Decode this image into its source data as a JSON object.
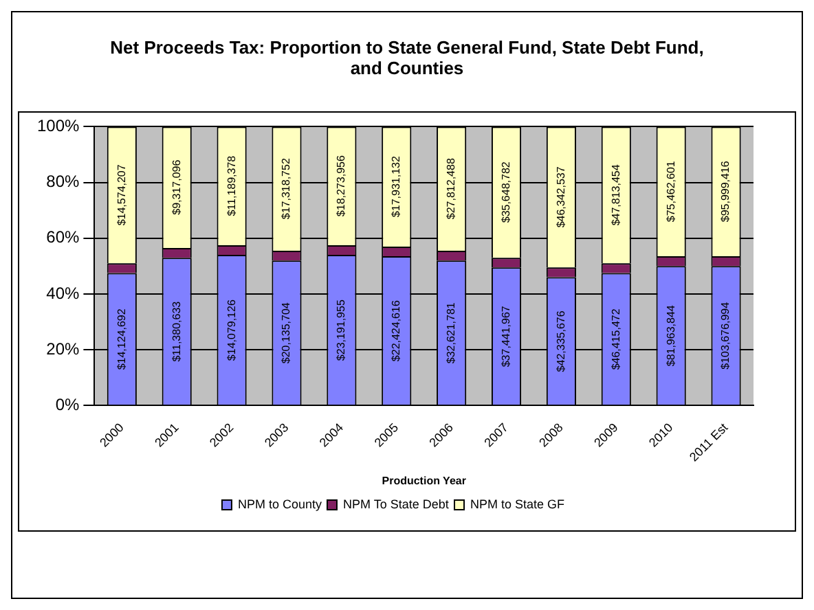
{
  "chart_data": {
    "type": "bar",
    "title": "Net Proceeds Tax: Proportion to State General Fund, State Debt Fund, and Counties",
    "xlabel": "Production Year",
    "categories": [
      "2000",
      "2001",
      "2002",
      "2003",
      "2004",
      "2005",
      "2006",
      "2007",
      "2008",
      "2009",
      "2010",
      "2011 Est"
    ],
    "stacked": true,
    "ylim": [
      0,
      100
    ],
    "yticks": [
      {
        "value": 0,
        "label": "0%"
      },
      {
        "value": 20,
        "label": "20%"
      },
      {
        "value": 40,
        "label": "40%"
      },
      {
        "value": 60,
        "label": "60%"
      },
      {
        "value": 80,
        "label": "80%"
      },
      {
        "value": 100,
        "label": "100%"
      }
    ],
    "grid": "y",
    "legend": "bottom",
    "series": [
      {
        "name": "NPM to County",
        "color": "#8080ff",
        "values": [
          47.5,
          53,
          54,
          52,
          54,
          53.5,
          52,
          49.5,
          46,
          47.5,
          50,
          50
        ]
      },
      {
        "name": "NPM To State Debt",
        "color": "#802060",
        "values": [
          3.5,
          3.5,
          3.5,
          3.5,
          3.5,
          3.5,
          3.5,
          3.5,
          3.5,
          3.5,
          3.5,
          3.5
        ]
      },
      {
        "name": "NPM to State GF",
        "color": "#ffffc0",
        "values": [
          49,
          43.5,
          42.5,
          44.5,
          42.5,
          43,
          44.5,
          47,
          50.5,
          49,
          46.5,
          46.5
        ]
      }
    ],
    "annotations": [
      {
        "text": "$14,124,692",
        "x": "2000",
        "y": 23.75
      },
      {
        "text": "$11,380,633",
        "x": "2001",
        "y": 26.5
      },
      {
        "text": "$14,079,126",
        "x": "2002",
        "y": 27
      },
      {
        "text": "$20,135,704",
        "x": "2003",
        "y": 26
      },
      {
        "text": "$23,191,955",
        "x": "2004",
        "y": 27
      },
      {
        "text": "$22,424,616",
        "x": "2005",
        "y": 26.75
      },
      {
        "text": "$32,621,781",
        "x": "2006",
        "y": 26
      },
      {
        "text": "$37,441,967",
        "x": "2007",
        "y": 24.75
      },
      {
        "text": "$42,335,676",
        "x": "2008",
        "y": 23
      },
      {
        "text": "$46,415,472",
        "x": "2009",
        "y": 23.75
      },
      {
        "text": "$81,963,844",
        "x": "2010",
        "y": 25
      },
      {
        "text": "$103,676,994",
        "x": "2011 Est",
        "y": 25
      },
      {
        "text": "$14,574,207",
        "x": "2000",
        "y": 75.5
      },
      {
        "text": "$9,317,096",
        "x": "2001",
        "y": 78.25
      },
      {
        "text": "$11,189,378",
        "x": "2002",
        "y": 78.75
      },
      {
        "text": "$17,318,752",
        "x": "2003",
        "y": 77.75
      },
      {
        "text": "$18,273,956",
        "x": "2004",
        "y": 78.75
      },
      {
        "text": "$17,931,132",
        "x": "2005",
        "y": 78.5
      },
      {
        "text": "$27,812,488",
        "x": "2006",
        "y": 77.75
      },
      {
        "text": "$35,648,782",
        "x": "2007",
        "y": 76.5
      },
      {
        "text": "$46,342,537",
        "x": "2008",
        "y": 74.75
      },
      {
        "text": "$47,813,454",
        "x": "2009",
        "y": 75.5
      },
      {
        "text": "$75,462,601",
        "x": "2010",
        "y": 76.75
      },
      {
        "text": "$95,999,416",
        "x": "2011 Est",
        "y": 76.75
      }
    ]
  }
}
